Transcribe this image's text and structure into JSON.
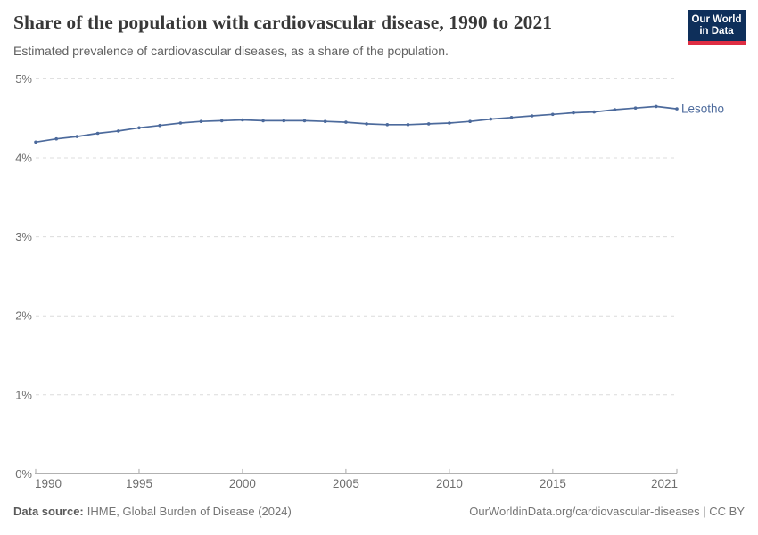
{
  "header": {
    "title": "Share of the population with cardiovascular disease, 1990 to 2021",
    "subtitle": "Estimated prevalence of cardiovascular diseases, as a share of the population.",
    "logo": {
      "line1": "Our World",
      "line2": "in Data"
    }
  },
  "chart_data": {
    "type": "line",
    "title": "Share of the population with cardiovascular disease, 1990 to 2021",
    "x": [
      1990,
      1991,
      1992,
      1993,
      1994,
      1995,
      1996,
      1997,
      1998,
      1999,
      2000,
      2001,
      2002,
      2003,
      2004,
      2005,
      2006,
      2007,
      2008,
      2009,
      2010,
      2011,
      2012,
      2013,
      2014,
      2015,
      2016,
      2017,
      2018,
      2019,
      2020,
      2021
    ],
    "series": [
      {
        "name": "Lesotho",
        "color": "#4C6A9C",
        "values": [
          4.2,
          4.24,
          4.27,
          4.31,
          4.34,
          4.38,
          4.41,
          4.44,
          4.46,
          4.47,
          4.48,
          4.47,
          4.47,
          4.47,
          4.46,
          4.45,
          4.43,
          4.42,
          4.42,
          4.43,
          4.44,
          4.46,
          4.49,
          4.51,
          4.53,
          4.55,
          4.57,
          4.58,
          4.61,
          4.63,
          4.65,
          4.62
        ]
      }
    ],
    "xlabel": "",
    "ylabel": "",
    "ylim": [
      0,
      5
    ],
    "xlim": [
      1990,
      2021
    ],
    "yticks": [
      {
        "value": 0,
        "label": "0%"
      },
      {
        "value": 1,
        "label": "1%"
      },
      {
        "value": 2,
        "label": "2%"
      },
      {
        "value": 3,
        "label": "3%"
      },
      {
        "value": 4,
        "label": "4%"
      },
      {
        "value": 5,
        "label": "5%"
      }
    ],
    "xticks": [
      {
        "value": 1990,
        "label": "1990"
      },
      {
        "value": 1995,
        "label": "1995"
      },
      {
        "value": 2000,
        "label": "2000"
      },
      {
        "value": 2005,
        "label": "2005"
      },
      {
        "value": 2010,
        "label": "2010"
      },
      {
        "value": 2015,
        "label": "2015"
      },
      {
        "value": 2021,
        "label": "2021"
      }
    ],
    "grid": "horizontal-dashed",
    "legend_position": "end-of-line-label"
  },
  "footer": {
    "source_label": "Data source:",
    "source_value": "IHME, Global Burden of Disease (2024)",
    "attribution": "OurWorldinData.org/cardiovascular-diseases | CC BY"
  },
  "colors": {
    "line": "#4C6A9C",
    "entity_label": "#4C6A9C",
    "gridline": "#dcdcdc",
    "axis": "#a7a7a7",
    "tick_label": "#6e6e6e",
    "title": "#383838",
    "subtitle": "#616161",
    "logo_bg": "#0E2F5A",
    "logo_bar": "#DE2D42"
  }
}
